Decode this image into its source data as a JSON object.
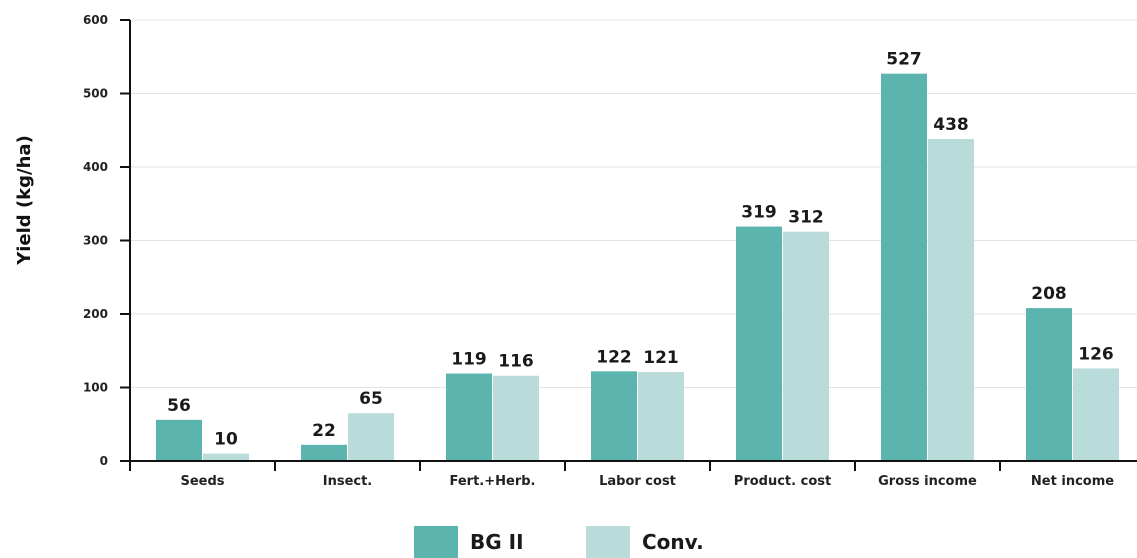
{
  "chart_data": {
    "type": "bar",
    "ylabel": "Yield (kg/ha)",
    "xlabel": "",
    "ylim": [
      0,
      600
    ],
    "yticks": [
      0,
      100,
      200,
      300,
      400,
      500,
      600
    ],
    "grid": true,
    "legend_position": "bottom-center",
    "categories": [
      "Seeds",
      "Insect.",
      "Fert.+Herb.",
      "Labor cost",
      "Product. cost",
      "Gross income",
      "Net income"
    ],
    "series": [
      {
        "name": "BG II",
        "color": "#5bb5ae",
        "values": [
          56,
          22,
          119,
          122,
          319,
          527,
          208
        ]
      },
      {
        "name": "Conv.",
        "color": "#b9dcda",
        "values": [
          10,
          65,
          116,
          121,
          312,
          438,
          126
        ]
      }
    ],
    "data_labels": [
      [
        "56",
        "22",
        "119",
        "122",
        "319",
        "527",
        "208"
      ],
      [
        "10",
        "65",
        "116",
        "121",
        "312",
        "438",
        "126"
      ]
    ]
  }
}
